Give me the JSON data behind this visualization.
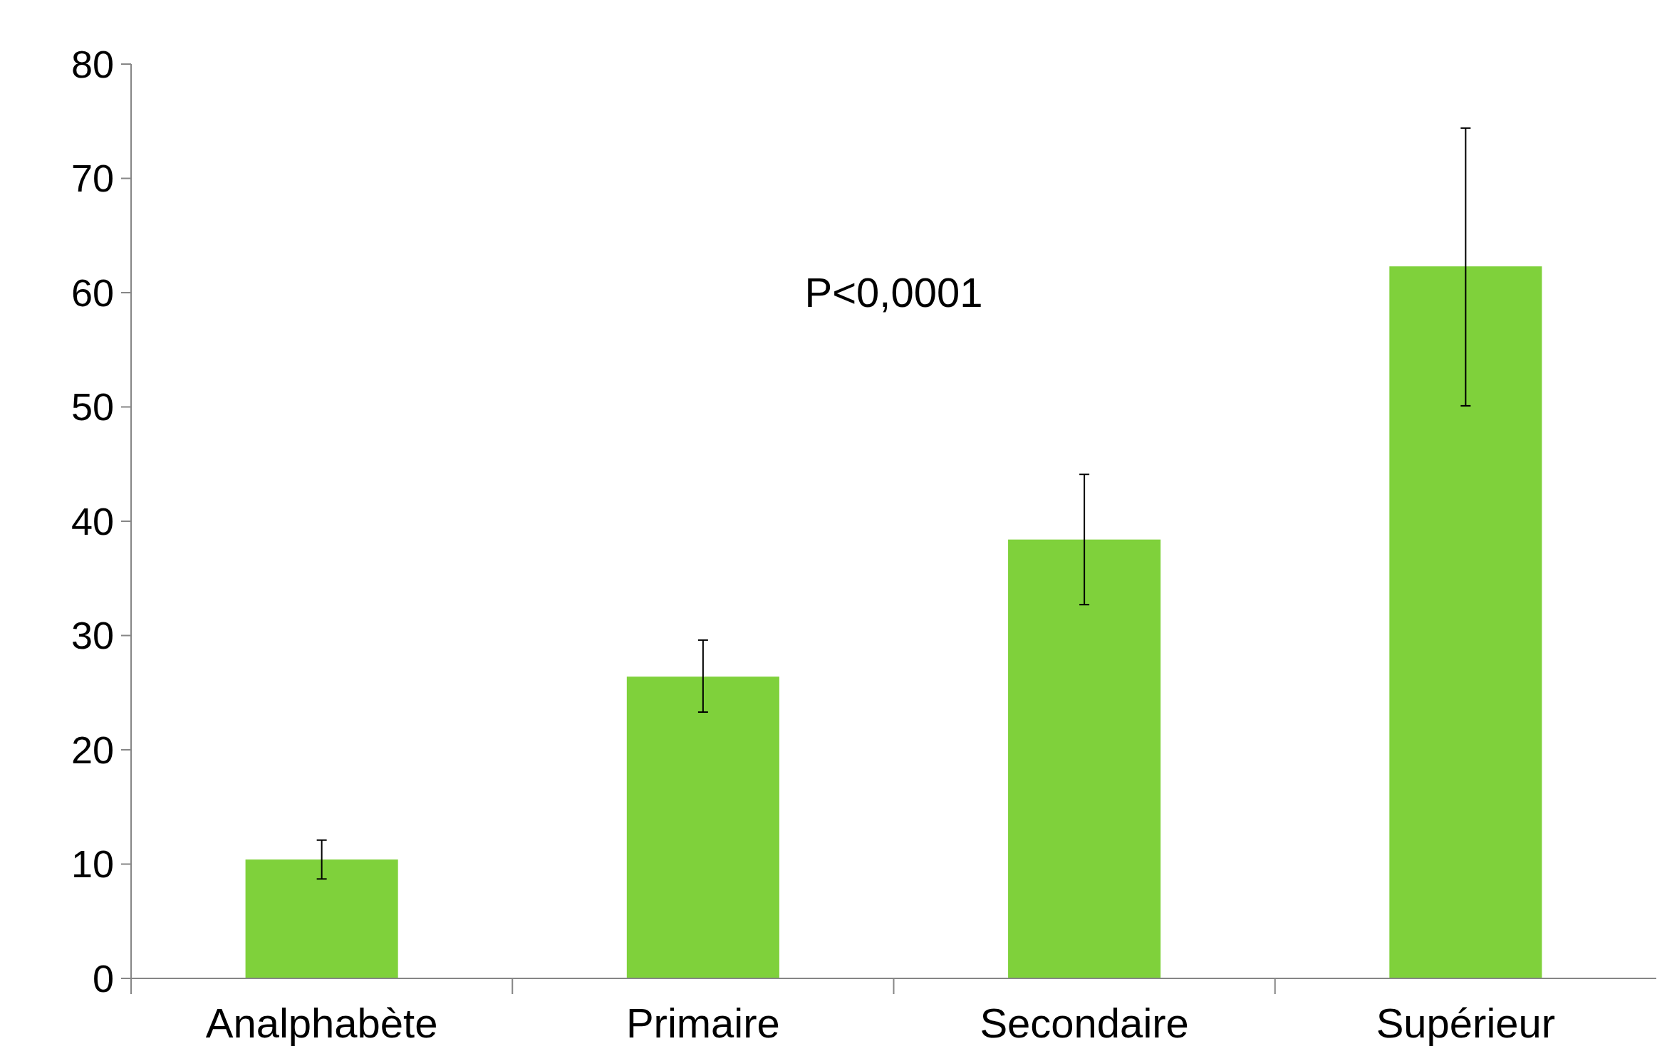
{
  "chart_data": {
    "type": "bar",
    "categories": [
      "Analphabète",
      "Primaire",
      "Secondaire",
      "Supérieur"
    ],
    "values": [
      10.4,
      26.4,
      38.4,
      62.3
    ],
    "errors": [
      [
        8.7,
        12.1
      ],
      [
        23.3,
        29.6
      ],
      [
        32.7,
        44.1
      ],
      [
        50.1,
        74.4
      ]
    ],
    "color": "#7fd13b",
    "ylim": [
      0,
      80
    ],
    "yticks": [
      0,
      10,
      20,
      30,
      40,
      50,
      60,
      70,
      80
    ],
    "grid": false,
    "annotations": [
      "P<0,0001"
    ]
  }
}
